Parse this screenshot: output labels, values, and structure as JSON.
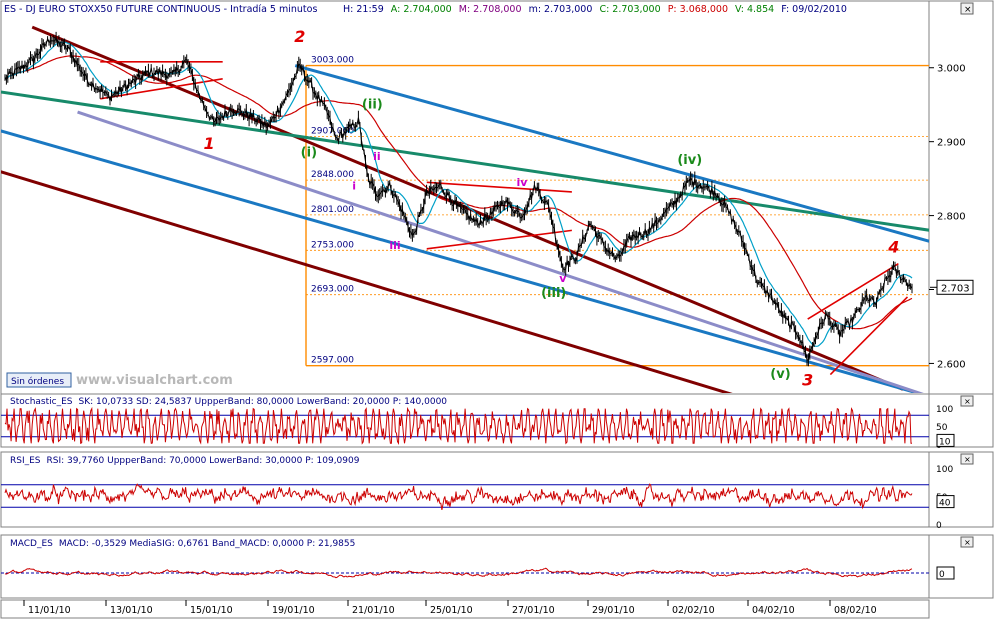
{
  "main_panel": {
    "header": "ES - DJ EURO STOXX50 FUTURE CONTINUOUS - Intradía 5 minutos",
    "quote": {
      "H": "21:59",
      "A": "2.704,000",
      "M": "2.708,000",
      "m": "2.703,000",
      "C": "2.703,000",
      "P": "3.068,000",
      "V": "4.854",
      "F": "09/02/2010"
    },
    "price_labels": [
      "3.000",
      "2.900",
      "2.800",
      "2.700",
      "2.600"
    ],
    "last_price": "2.703",
    "button_label": "Sin órdenes",
    "watermark": "www.visualchart.com"
  },
  "colors": {
    "price_line": "#000000",
    "ma_fast": "#00a0c8",
    "ma_slow": "#cc0000",
    "channel_dark": "#800000",
    "channel_blue": "#1a78c2",
    "channel_green": "#178a6a",
    "channel_purple": "#8c8cc8",
    "fib": "#ff8c00",
    "indicator": "#cc0000",
    "band": "#0000aa"
  },
  "chart_data": [
    {
      "type": "line",
      "x_labels": [
        "11/01/10",
        "13/01/10",
        "15/01/10",
        "19/01/10",
        "21/01/10",
        "25/01/10",
        "27/01/10",
        "29/01/10",
        "02/02/10",
        "04/02/10",
        "08/02/10"
      ],
      "ylim": [
        2560,
        3070
      ],
      "y_ticks": [
        3000,
        2900,
        2800,
        2700,
        2600
      ],
      "close_path": [
        [
          0,
          2985
        ],
        [
          0.03,
          3010
        ],
        [
          0.05,
          3040
        ],
        [
          0.07,
          3025
        ],
        [
          0.09,
          2985
        ],
        [
          0.115,
          2960
        ],
        [
          0.14,
          2980
        ],
        [
          0.16,
          2995
        ],
        [
          0.185,
          2990
        ],
        [
          0.2,
          3010
        ],
        [
          0.215,
          2960
        ],
        [
          0.23,
          2925
        ],
        [
          0.25,
          2945
        ],
        [
          0.27,
          2935
        ],
        [
          0.29,
          2920
        ],
        [
          0.31,
          2960
        ],
        [
          0.325,
          3003
        ],
        [
          0.34,
          2970
        ],
        [
          0.355,
          2940
        ],
        [
          0.365,
          2903
        ],
        [
          0.38,
          2918
        ],
        [
          0.39,
          2928
        ],
        [
          0.4,
          2850
        ],
        [
          0.41,
          2830
        ],
        [
          0.425,
          2840
        ],
        [
          0.44,
          2800
        ],
        [
          0.45,
          2770
        ],
        [
          0.465,
          2830
        ],
        [
          0.48,
          2840
        ],
        [
          0.5,
          2810
        ],
        [
          0.52,
          2790
        ],
        [
          0.535,
          2800
        ],
        [
          0.55,
          2820
        ],
        [
          0.57,
          2800
        ],
        [
          0.585,
          2840
        ],
        [
          0.6,
          2810
        ],
        [
          0.615,
          2730
        ],
        [
          0.63,
          2745
        ],
        [
          0.645,
          2790
        ],
        [
          0.66,
          2760
        ],
        [
          0.675,
          2740
        ],
        [
          0.69,
          2770
        ],
        [
          0.71,
          2780
        ],
        [
          0.725,
          2800
        ],
        [
          0.74,
          2820
        ],
        [
          0.755,
          2848
        ],
        [
          0.77,
          2840
        ],
        [
          0.785,
          2830
        ],
        [
          0.8,
          2800
        ],
        [
          0.815,
          2760
        ],
        [
          0.83,
          2710
        ],
        [
          0.845,
          2690
        ],
        [
          0.86,
          2660
        ],
        [
          0.875,
          2640
        ],
        [
          0.885,
          2605
        ],
        [
          0.895,
          2640
        ],
        [
          0.905,
          2665
        ],
        [
          0.92,
          2640
        ],
        [
          0.935,
          2660
        ],
        [
          0.95,
          2690
        ],
        [
          0.96,
          2680
        ],
        [
          0.97,
          2710
        ],
        [
          0.98,
          2728
        ],
        [
          0.99,
          2715
        ],
        [
          1.0,
          2703
        ]
      ],
      "fibonacci_levels": [
        {
          "label": "3003.000",
          "value": 3003
        },
        {
          "label": "2907.000",
          "value": 2907
        },
        {
          "label": "2848.000",
          "value": 2848
        },
        {
          "label": "2801.000",
          "value": 2801
        },
        {
          "label": "2753.000",
          "value": 2753
        },
        {
          "label": "2693.000",
          "value": 2693
        },
        {
          "label": "2597.000",
          "value": 2597
        }
      ],
      "wave_labels_red": [
        {
          "text": "1",
          "t": 0.225,
          "v": 2890
        },
        {
          "text": "2",
          "t": 0.325,
          "v": 3035
        },
        {
          "text": "3",
          "t": 0.885,
          "v": 2570
        },
        {
          "text": "4",
          "t": 0.98,
          "v": 2750
        }
      ],
      "wave_labels_green": [
        {
          "text": "(i)",
          "t": 0.335,
          "v": 2880
        },
        {
          "text": "(ii)",
          "t": 0.405,
          "v": 2945
        },
        {
          "text": "(iii)",
          "t": 0.605,
          "v": 2690
        },
        {
          "text": "(iv)",
          "t": 0.755,
          "v": 2870
        },
        {
          "text": "(v)",
          "t": 0.855,
          "v": 2580
        }
      ],
      "wave_labels_magenta": [
        {
          "text": "i",
          "t": 0.385,
          "v": 2835
        },
        {
          "text": "ii",
          "t": 0.41,
          "v": 2875
        },
        {
          "text": "iii",
          "t": 0.43,
          "v": 2755
        },
        {
          "text": "iv",
          "t": 0.57,
          "v": 2840
        },
        {
          "text": "v",
          "t": 0.615,
          "v": 2710
        }
      ]
    },
    {
      "type": "line",
      "title": "Stochastic_ES",
      "params": "SK: 10,0733  SD: 24,5837  UppperBand: 80,0000  LowerBand: 20,0000  P: 140,0000",
      "ylim": [
        0,
        100
      ],
      "y_ticks": [
        "100",
        "50",
        "0"
      ],
      "bands": [
        80,
        20
      ],
      "last_value": "10"
    },
    {
      "type": "line",
      "title": "RSI_ES",
      "params": "RSI: 39,7760  UppperBand: 70,0000  LowerBand: 30,0000  P: 109,0909",
      "ylim": [
        0,
        100
      ],
      "y_ticks": [
        "100",
        "50",
        "0"
      ],
      "bands": [
        70,
        30
      ],
      "last_value": "40"
    },
    {
      "type": "line",
      "title": "MACD_ES",
      "params": "MACD: -0,3529  MediaSIG: 0,6761  Band_MACD: 0,0000  P: 21,9855",
      "last_value": "0"
    }
  ]
}
